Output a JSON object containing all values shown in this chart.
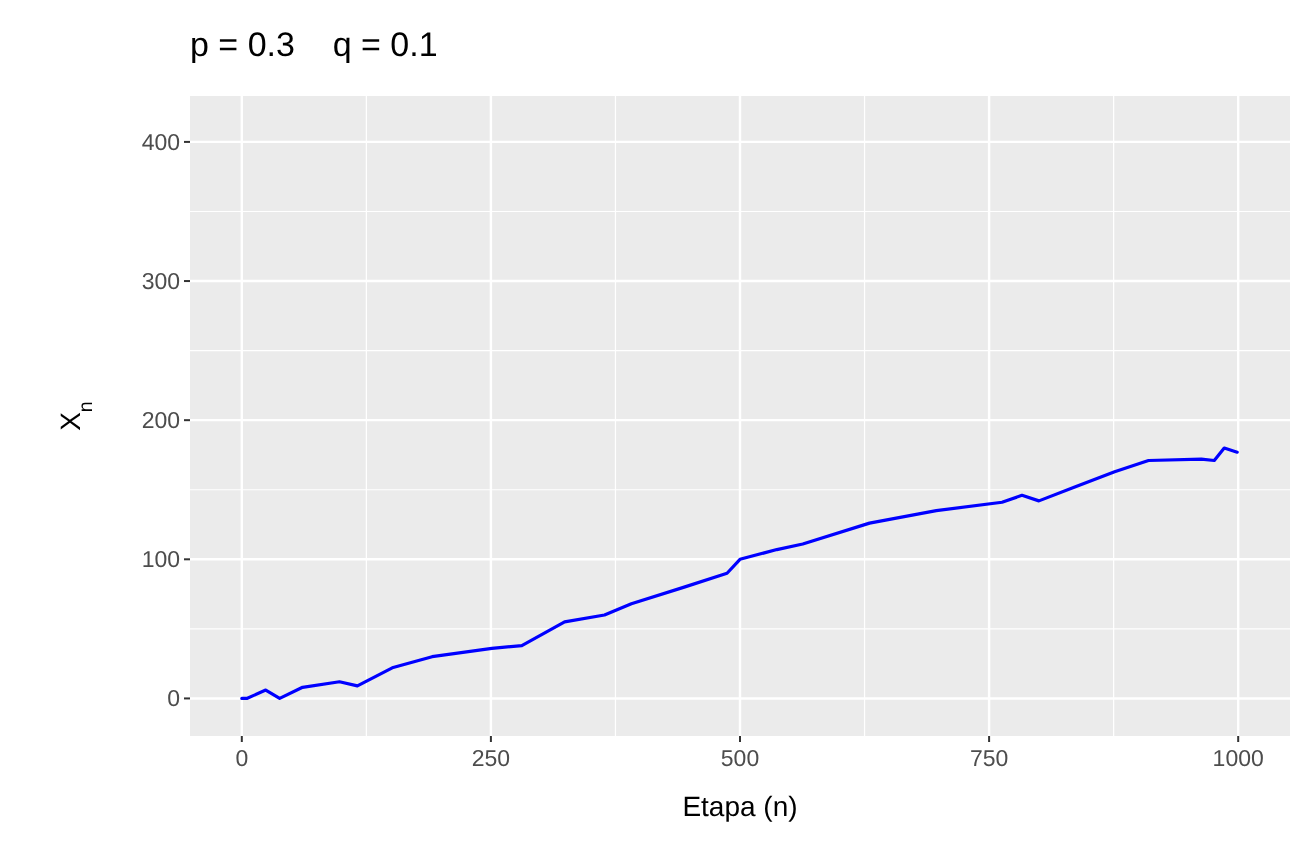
{
  "chart_data": {
    "type": "line",
    "title": "p = 0.3    q = 0.1",
    "xlabel": "Etapa (n)",
    "ylabel": "X$_{n}$",
    "x": [
      0,
      5,
      24,
      38,
      61,
      98,
      116,
      151,
      191,
      251,
      281,
      324,
      364,
      391,
      444,
      487,
      500,
      537,
      563,
      630,
      697,
      763,
      783,
      800,
      836,
      876,
      910,
      963,
      976,
      986,
      999
    ],
    "series": [
      {
        "color": "#0000ff",
        "values": [
          0,
          0,
          6,
          0,
          8,
          12,
          9,
          22,
          30,
          36,
          38,
          55,
          60,
          68,
          80,
          90,
          100,
          107,
          111,
          126,
          135,
          141,
          146,
          142,
          152,
          163,
          171,
          172,
          171,
          180,
          177
        ]
      }
    ],
    "xlim": [
      -52,
      1052
    ],
    "ylim": [
      -27,
      433
    ],
    "xticks": [
      0,
      250,
      500,
      750,
      1000
    ],
    "yticks": [
      0,
      100,
      200,
      300,
      400
    ],
    "grid": true,
    "marker": "none",
    "line_style": "solid"
  }
}
